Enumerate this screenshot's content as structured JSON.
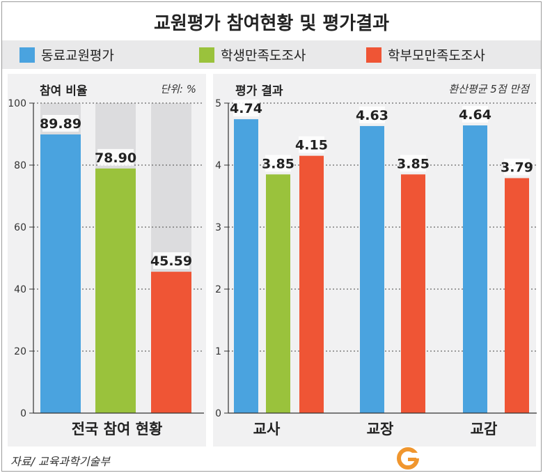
{
  "title": "교원평가 참여현황 및 평가결과",
  "legend": [
    {
      "label": "동료교원평가",
      "color": "#4aa3df"
    },
    {
      "label": "학생만족도조사",
      "color": "#9ac23c"
    },
    {
      "label": "학부모만족도조사",
      "color": "#ef5535"
    }
  ],
  "chart_data": [
    {
      "type": "bar",
      "title": "참여 비율",
      "unit_note": "단위: %",
      "categories": [
        "전국 참여 현황"
      ],
      "series": [
        {
          "name": "동료교원평가",
          "values": [
            89.89
          ],
          "labels": [
            "89.89"
          ],
          "color": "#4aa3df"
        },
        {
          "name": "학생만족도조사",
          "values": [
            78.9
          ],
          "labels": [
            "78.90"
          ],
          "color": "#9ac23c"
        },
        {
          "name": "학부모만족도조사",
          "values": [
            45.59
          ],
          "labels": [
            "45.59"
          ],
          "color": "#ef5535"
        }
      ],
      "ylim": [
        0,
        100
      ],
      "yticks": [
        "0",
        "20",
        "40",
        "60",
        "80",
        "100"
      ],
      "background_bar_max": 100,
      "grid": true
    },
    {
      "type": "bar",
      "title": "평가 결과",
      "unit_note": "환산평균 5점 만점",
      "categories": [
        "교사",
        "교장",
        "교감"
      ],
      "series": [
        {
          "name": "동료교원평가",
          "values": [
            4.74,
            4.63,
            4.64
          ],
          "labels": [
            "4.74",
            "4.63",
            "4.64"
          ],
          "color": "#4aa3df"
        },
        {
          "name": "학생만족도조사",
          "values": [
            3.85,
            null,
            null
          ],
          "labels": [
            "3.85",
            "",
            ""
          ],
          "color": "#9ac23c"
        },
        {
          "name": "학부모만족도조사",
          "values": [
            4.15,
            3.85,
            3.79
          ],
          "labels": [
            "4.15",
            "3.85",
            "3.79"
          ],
          "color": "#ef5535"
        }
      ],
      "ylim": [
        0,
        5
      ],
      "yticks": [
        "0",
        "1",
        "2",
        "3",
        "4",
        "5"
      ],
      "grid": true
    }
  ],
  "source": "자료/ 교육과학기술부",
  "logo_letter": "G",
  "colors": {
    "background_bar": "#dcdcde",
    "panel": "#f1f1f2",
    "logo": "#f0962e"
  }
}
